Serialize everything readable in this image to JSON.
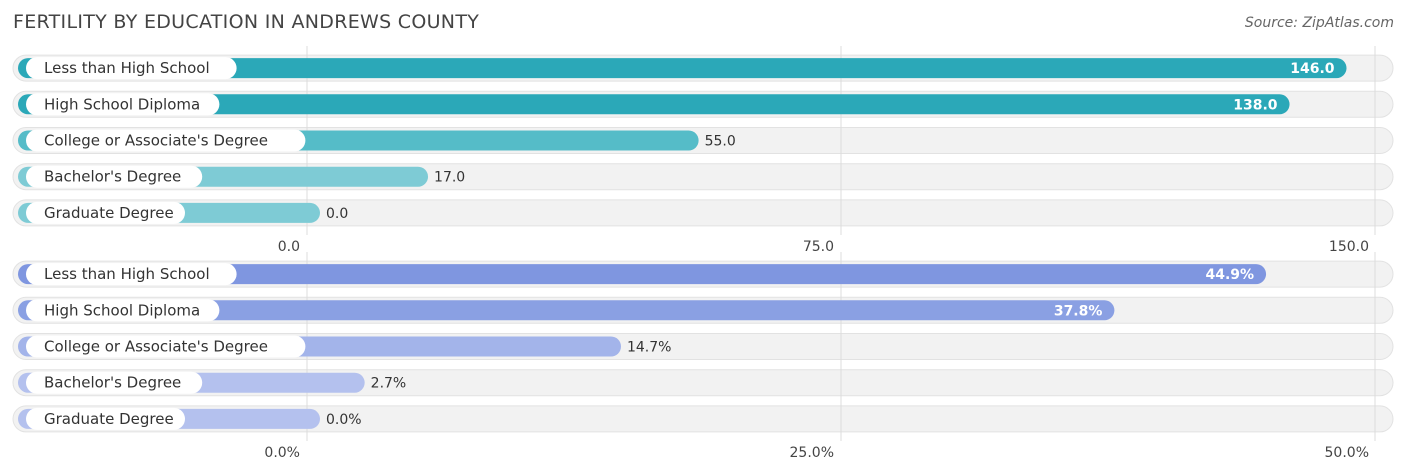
{
  "title": "FERTILITY BY EDUCATION IN ANDREWS COUNTY",
  "source": "Source: ZipAtlas.com",
  "chart_data": [
    {
      "type": "bar",
      "orientation": "horizontal",
      "categories": [
        "Less than High School",
        "High School Diploma",
        "College or Associate's Degree",
        "Bachelor's Degree",
        "Graduate Degree"
      ],
      "values": [
        146.0,
        138.0,
        55.0,
        17.0,
        0.0
      ],
      "value_labels": [
        "146.0",
        "138.0",
        "55.0",
        "17.0",
        "0.0"
      ],
      "xlim": [
        0,
        150
      ],
      "ticks": [
        0,
        75,
        150
      ],
      "tick_labels": [
        "0.0",
        "75.0",
        "150.0"
      ],
      "colors": [
        "#2ba8b8",
        "#2ba8b8",
        "#55bcc8",
        "#7ecbd5",
        "#7ecbd5"
      ],
      "grid": true
    },
    {
      "type": "bar",
      "orientation": "horizontal",
      "categories": [
        "Less than High School",
        "High School Diploma",
        "College or Associate's Degree",
        "Bachelor's Degree",
        "Graduate Degree"
      ],
      "values": [
        44.9,
        37.8,
        14.7,
        2.7,
        0.0
      ],
      "value_labels": [
        "44.9%",
        "37.8%",
        "14.7%",
        "2.7%",
        "0.0%"
      ],
      "xlim": [
        0,
        50
      ],
      "ticks": [
        0,
        25,
        50
      ],
      "tick_labels": [
        "0.0%",
        "25.0%",
        "50.0%"
      ],
      "colors": [
        "#7f96e0",
        "#8aa0e3",
        "#a3b4ea",
        "#b4c1ee",
        "#b4c1ee"
      ],
      "grid": true
    }
  ]
}
